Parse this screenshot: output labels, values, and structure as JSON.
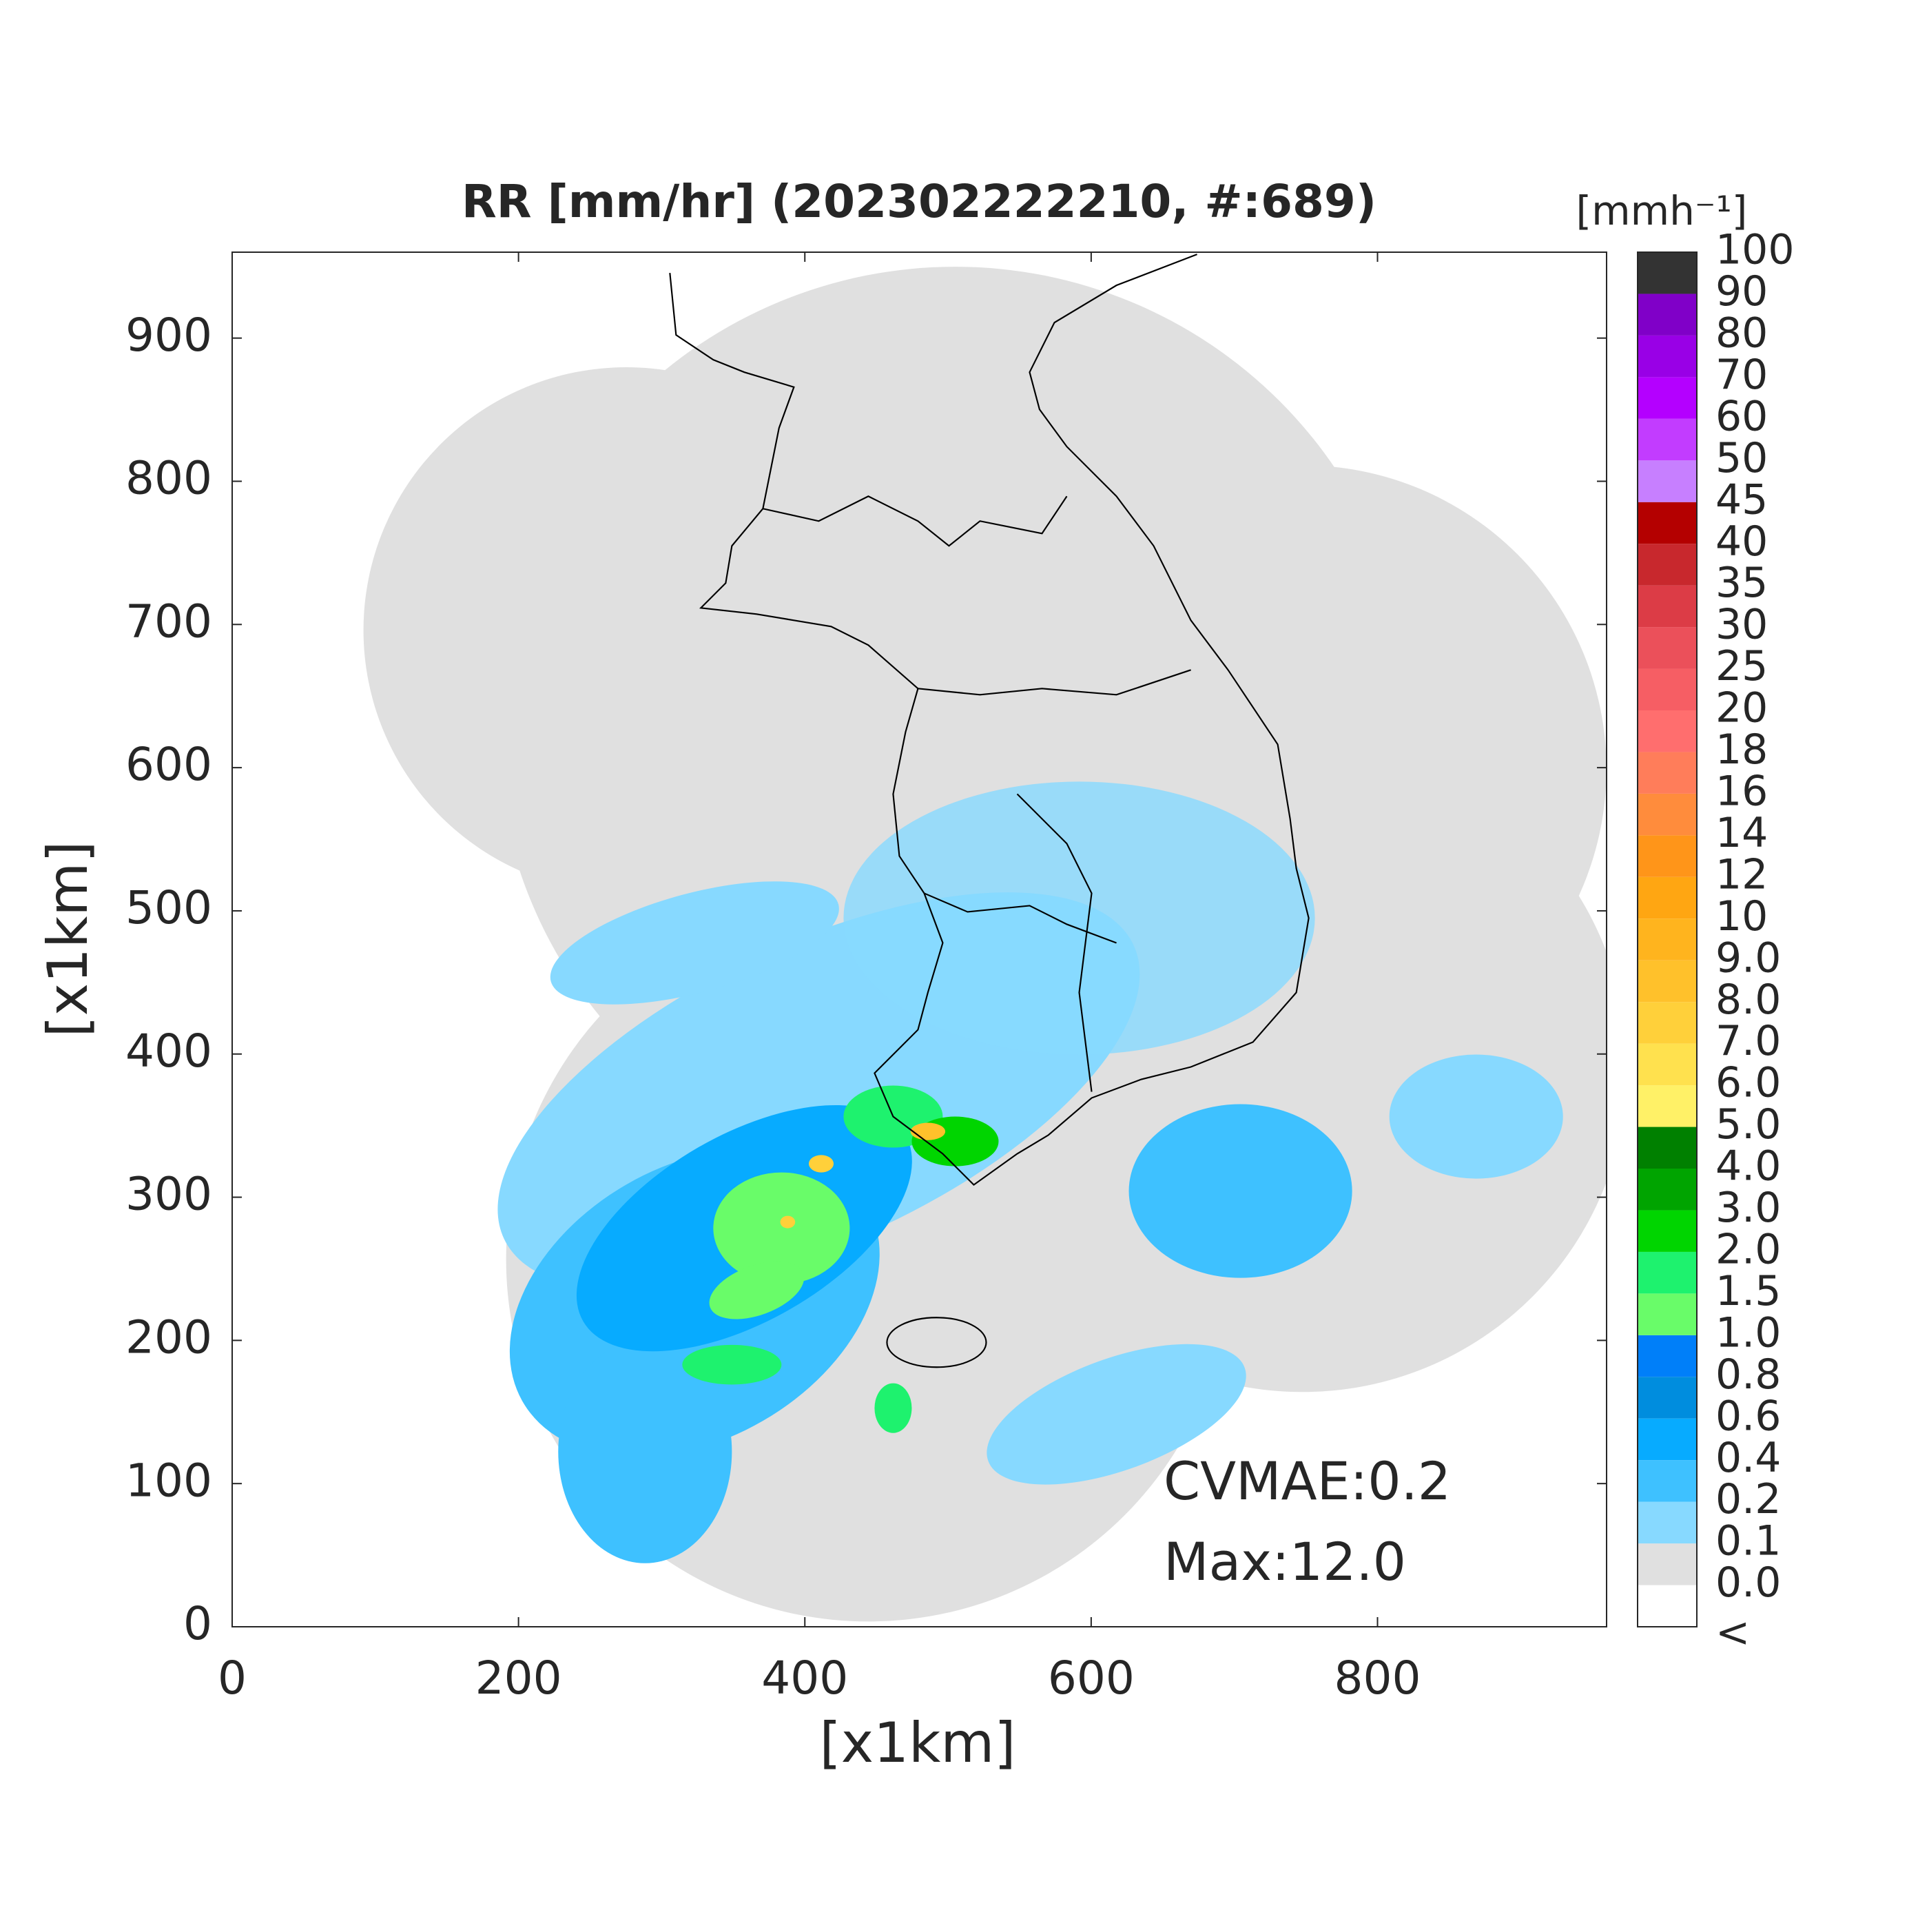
{
  "chart_data": {
    "type": "map",
    "title": "RR [mm/hr] (202302222210, #:689)",
    "xlabel": "[x1km]",
    "ylabel": "[x1km]",
    "xlim": [
      0,
      960
    ],
    "ylim": [
      0,
      960
    ],
    "xticks": [
      0,
      200,
      400,
      600,
      800
    ],
    "yticks": [
      0,
      100,
      200,
      300,
      400,
      500,
      600,
      700,
      800,
      900
    ],
    "annotations": [
      "CVMAE:0.2",
      "Max:12.0"
    ],
    "colorbar": {
      "label": "[mmh⁻¹]",
      "under_label": "<",
      "under_color": "#ffffff",
      "ticks": [
        {
          "value": 0,
          "label": "0.0"
        },
        0.1,
        0.2,
        0.4,
        0.6,
        0.8,
        {
          "value": 1,
          "label": "1.0"
        },
        1.5,
        {
          "value": 2,
          "label": "2.0"
        },
        {
          "value": 3,
          "label": "3.0"
        },
        {
          "value": 4,
          "label": "4.0"
        },
        {
          "value": 5,
          "label": "5.0"
        },
        {
          "value": 6,
          "label": "6.0"
        },
        {
          "value": 7,
          "label": "7.0"
        },
        {
          "value": 8,
          "label": "8.0"
        },
        {
          "value": 9,
          "label": "9.0"
        },
        10,
        12,
        14,
        16,
        18,
        20,
        25,
        30,
        35,
        40,
        45,
        50,
        60,
        70,
        80,
        90,
        100
      ],
      "colors": [
        "#e0e0e0",
        "#87d9ff",
        "#3ec1ff",
        "#07abff",
        "#008dde",
        "#007ff9",
        "#69fc69",
        "#1ef26e",
        "#00d500",
        "#00a400",
        "#008000",
        "#fff167",
        "#ffe14e",
        "#ffd03a",
        "#ffc12b",
        "#ffb41e",
        "#ffa612",
        "#ff9519",
        "#ff8c3c",
        "#ff7d5a",
        "#ff6e6e",
        "#f65e64",
        "#eb505a",
        "#dc3c46",
        "#c8282d",
        "#b40000",
        "#c77fff",
        "#c23cff",
        "#b400ff",
        "#9900e6",
        "#8000c8",
        "#333333"
      ]
    }
  }
}
